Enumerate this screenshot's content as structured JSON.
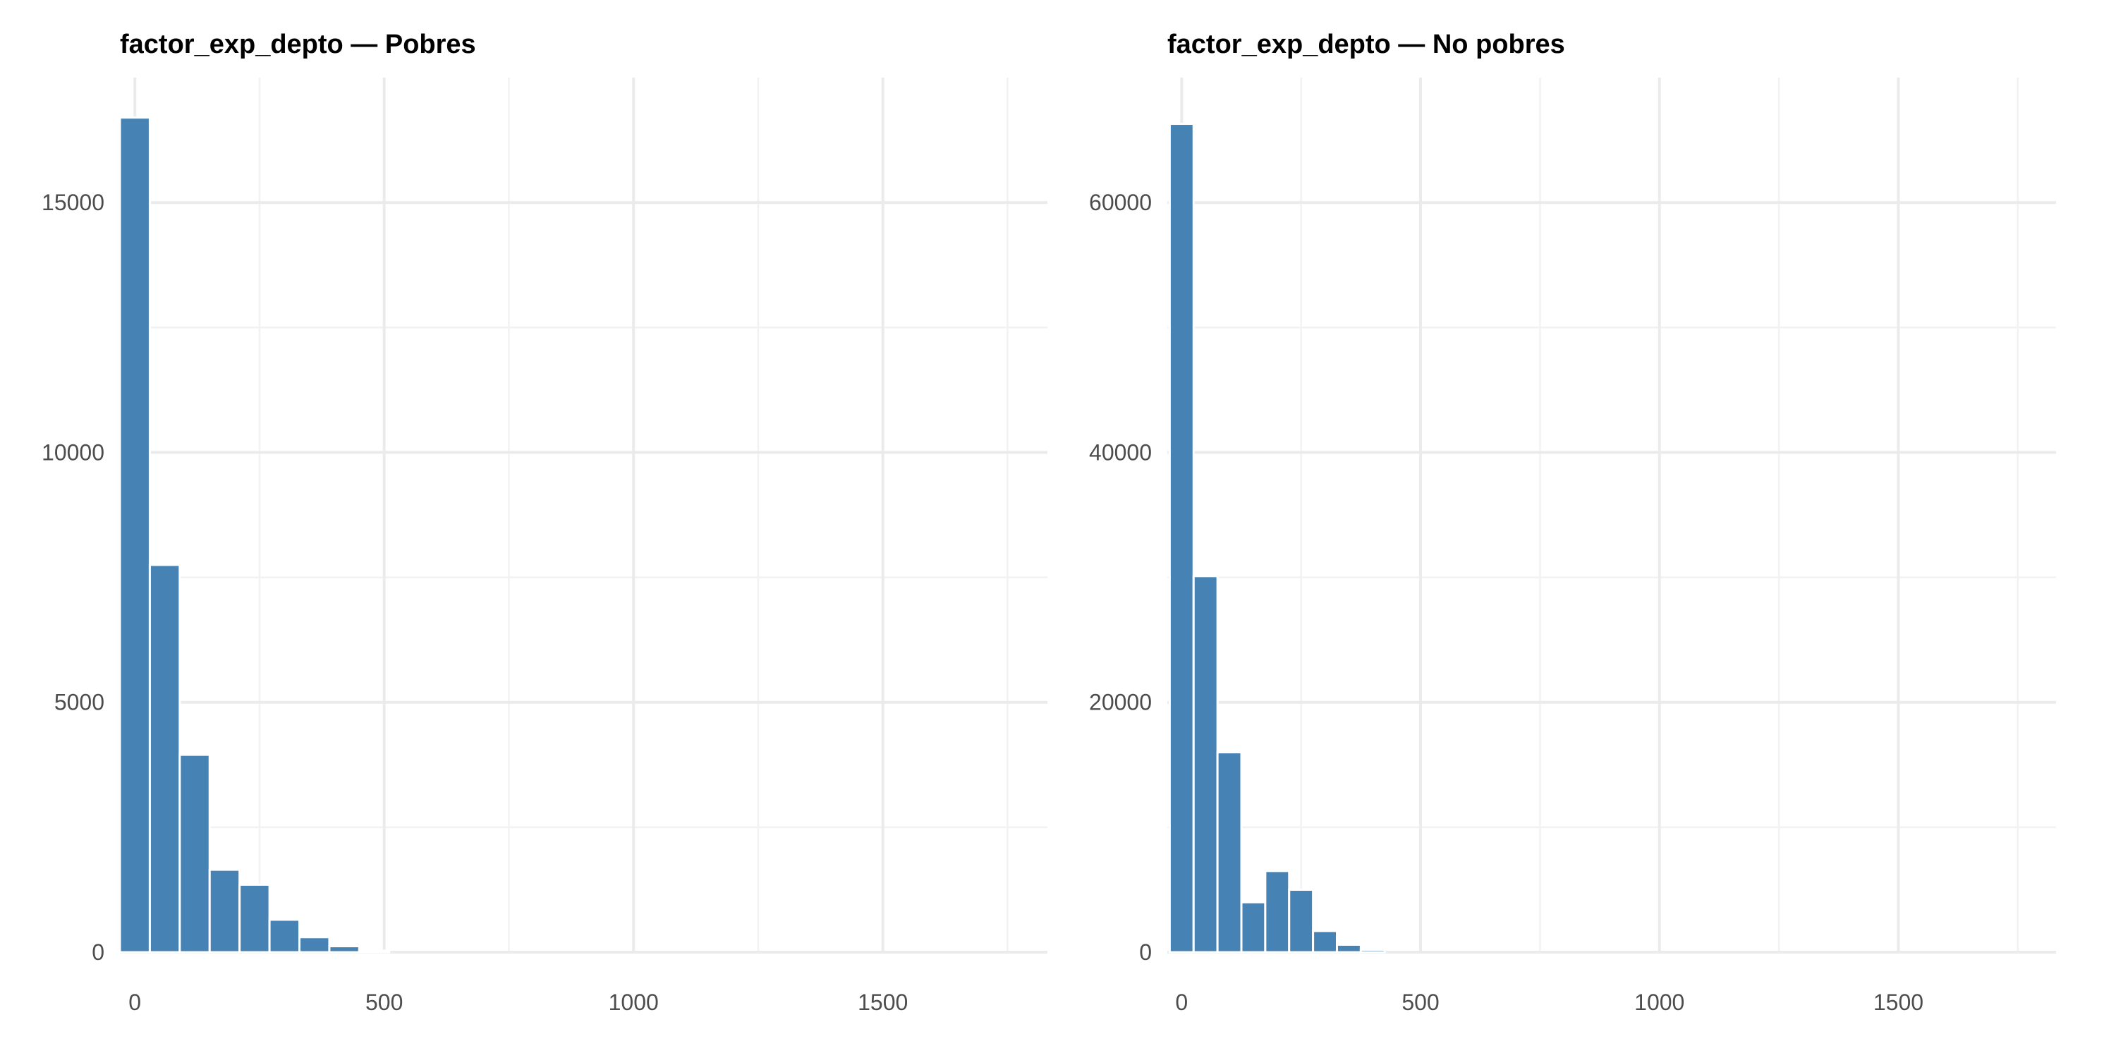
{
  "colors": {
    "bar_fill": "#4682b4",
    "bar_outline": "#ffffff",
    "grid": "#ebebeb",
    "tick_text": "#4d4d4d"
  },
  "chart_data": [
    {
      "type": "bar",
      "title": "factor_exp_depto — Pobres",
      "xlabel": "",
      "ylabel": "",
      "xlim": [
        -30,
        1830
      ],
      "ylim": [
        0,
        17500
      ],
      "x_ticks": [
        0,
        500,
        1000,
        1500
      ],
      "y_ticks": [
        0,
        5000,
        10000,
        15000
      ],
      "grid": true,
      "bin_width": 60,
      "bin_centers": [
        0,
        60,
        120,
        180,
        240,
        300,
        360,
        420,
        480
      ],
      "values": [
        16700,
        7750,
        3950,
        1650,
        1350,
        650,
        300,
        120,
        30
      ]
    },
    {
      "type": "bar",
      "title": "factor_exp_depto — No pobres",
      "xlabel": "",
      "ylabel": "",
      "xlim": [
        -30,
        1830
      ],
      "ylim": [
        0,
        70000
      ],
      "x_ticks": [
        0,
        500,
        1000,
        1500
      ],
      "y_ticks": [
        0,
        20000,
        40000,
        60000
      ],
      "grid": true,
      "bin_width": 50,
      "bin_centers": [
        0,
        50,
        100,
        150,
        200,
        250,
        300,
        350,
        400
      ],
      "values": [
        66300,
        30100,
        16000,
        4000,
        6500,
        5000,
        1700,
        600,
        200
      ]
    }
  ]
}
